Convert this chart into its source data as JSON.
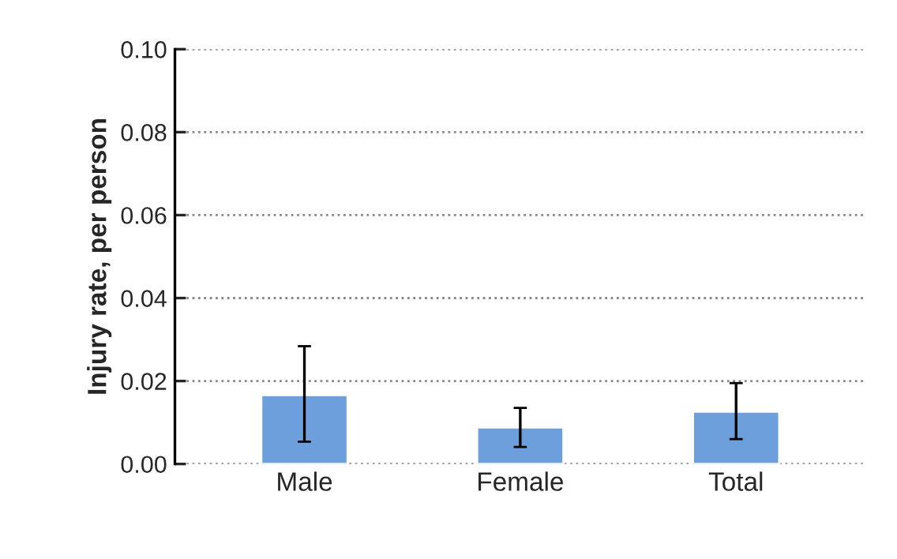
{
  "chart_data": {
    "type": "bar",
    "ylabel": "Injury rate, per person",
    "categories": [
      "Male",
      "Female",
      "Total"
    ],
    "values": [
      0.0166,
      0.0088,
      0.0126
    ],
    "errors": [
      [
        0.0054,
        0.0284
      ],
      [
        0.0041,
        0.0135
      ],
      [
        0.006,
        0.0195
      ]
    ],
    "color": "#6c9fdb",
    "ylim": [
      0,
      0.1
    ],
    "yticks": [
      {
        "value": 0,
        "label": "0.00"
      },
      {
        "value": 0.02,
        "label": "0.02"
      },
      {
        "value": 0.04,
        "label": "0.04"
      },
      {
        "value": 0.06,
        "label": "0.06"
      },
      {
        "value": 0.08,
        "label": "0.08"
      },
      {
        "value": 0.1,
        "label": "0.10"
      }
    ],
    "grid": "y"
  }
}
